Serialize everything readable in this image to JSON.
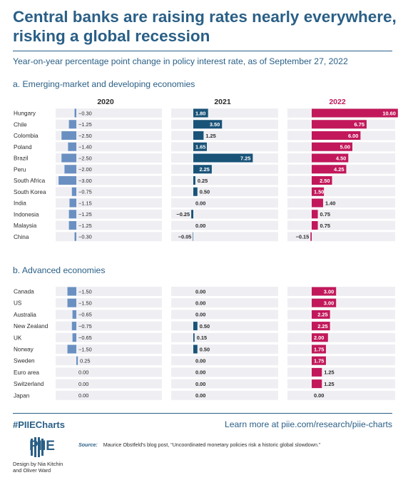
{
  "title": "Central banks are raising rates nearly everywhere, risking a global recession",
  "subtitle": "Year-on-year percentage point change in policy interest rate, as of September 27, 2022",
  "footer": {
    "hashtag": "#PIIECharts",
    "learn_more": "Learn more at piie.com/research/piie-charts",
    "source_label": "Source:",
    "source_text": "Maurice Obstfeld's blog post, “Uncoordinated monetary policies risk a historic global slowdown.”",
    "logo_text": "PIIE",
    "credit": "Design by Nia Kitchin and Oliver Ward"
  },
  "colors": {
    "title": "#2a5f86",
    "bar_2020": "#6a90c2",
    "bar_2021": "#195378",
    "bar_2022": "#c2185b",
    "row_band": "#efeff3",
    "header_2022": "#c2185b"
  },
  "chart_data": {
    "type": "bar",
    "orientation": "horizontal",
    "units": "percentage points",
    "columns": [
      "2020",
      "2021",
      "2022"
    ],
    "sections": [
      {
        "label": "a. Emerging-market and developing economies",
        "categories": [
          "Hungary",
          "Chile",
          "Colombia",
          "Poland",
          "Brazil",
          "Peru",
          "South Africa",
          "South Korea",
          "India",
          "Indonesia",
          "Malaysia",
          "China"
        ],
        "series": [
          {
            "name": "2020",
            "values": [
              -0.3,
              -1.25,
              -2.5,
              -1.4,
              -2.5,
              -2.0,
              -3.0,
              -0.75,
              -1.15,
              -1.25,
              -1.25,
              -0.3
            ],
            "labels": [
              "−0.30",
              "−1.25",
              "−2.50",
              "−1.40",
              "−2.50",
              "−2.00",
              "−3.00",
              "−0.75",
              "−1.15",
              "−1.25",
              "−1.25",
              "−0.30"
            ]
          },
          {
            "name": "2021",
            "values": [
              1.8,
              3.5,
              1.25,
              1.65,
              7.25,
              2.25,
              0.25,
              0.5,
              0.0,
              -0.25,
              0.0,
              -0.05
            ],
            "labels": [
              "1.80",
              "3.50",
              "1.25",
              "1.65",
              "7.25",
              "2.25",
              "0.25",
              "0.50",
              "0.00",
              "−0.25",
              "0.00",
              "−0.05"
            ]
          },
          {
            "name": "2022",
            "values": [
              10.6,
              6.75,
              6.0,
              5.0,
              4.5,
              4.25,
              2.5,
              1.5,
              1.4,
              0.75,
              0.75,
              -0.15
            ],
            "labels": [
              "10.60",
              "6.75",
              "6.00",
              "5.00",
              "4.50",
              "4.25",
              "2.50",
              "1.50",
              "1.40",
              "0.75",
              "0.75",
              "−0.15"
            ]
          }
        ]
      },
      {
        "label": "b. Advanced economies",
        "categories": [
          "Canada",
          "US",
          "Australia",
          "New Zealand",
          "UK",
          "Norway",
          "Sweden",
          "Euro area",
          "Switzerland",
          "Japan"
        ],
        "series": [
          {
            "name": "2020",
            "values": [
              -1.5,
              -1.5,
              -0.65,
              -0.75,
              -0.65,
              -1.5,
              0.25,
              0.0,
              0.0,
              0.0
            ],
            "labels": [
              "−1.50",
              "−1.50",
              "−0.65",
              "−0.75",
              "−0.65",
              "−1.50",
              "0.25",
              "0.00",
              "0.00",
              "0.00"
            ]
          },
          {
            "name": "2021",
            "values": [
              0.0,
              0.0,
              0.0,
              0.5,
              0.15,
              0.5,
              0.0,
              0.0,
              0.0,
              0.0
            ],
            "labels": [
              "0.00",
              "0.00",
              "0.00",
              "0.50",
              "0.15",
              "0.50",
              "0.00",
              "0.00",
              "0.00",
              "0.00"
            ]
          },
          {
            "name": "2022",
            "values": [
              3.0,
              3.0,
              2.25,
              2.25,
              2.0,
              1.75,
              1.75,
              1.25,
              1.25,
              0.0
            ],
            "labels": [
              "3.00",
              "3.00",
              "2.25",
              "2.25",
              "2.00",
              "1.75",
              "1.75",
              "1.25",
              "1.25",
              "0.00"
            ]
          }
        ]
      }
    ]
  }
}
